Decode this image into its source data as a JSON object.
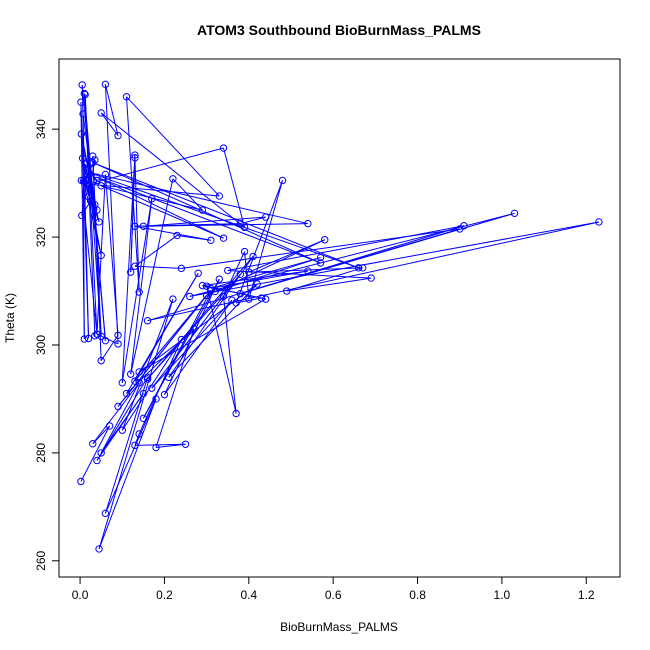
{
  "chart_data": {
    "type": "line",
    "title": "ATOM3 Southbound BioBurnMass_PALMS",
    "xlabel": "BioBurnMass_PALMS",
    "ylabel": "Theta (K)",
    "xlim": [
      -0.05,
      1.28
    ],
    "ylim": [
      257,
      353
    ],
    "xticks": [
      0.0,
      0.2,
      0.4,
      0.6,
      0.8,
      1.0,
      1.2
    ],
    "xtick_labels": [
      "0.0",
      "0.2",
      "0.4",
      "0.6",
      "0.8",
      "1.0",
      "1.2"
    ],
    "yticks": [
      260,
      280,
      300,
      320,
      340
    ],
    "ytick_labels": [
      "260",
      "280",
      "300",
      "320",
      "340"
    ],
    "grid": false,
    "marker": "open-circle",
    "series": [
      {
        "color": "#0000ff",
        "points": [
          [
            0.002,
            274.7
          ],
          [
            0.07,
            285.0
          ],
          [
            0.03,
            281.7
          ],
          [
            0.14,
            293.0
          ],
          [
            0.05,
            280.0
          ],
          [
            0.15,
            291.0
          ],
          [
            0.04,
            278.6
          ],
          [
            0.16,
            294.0
          ],
          [
            0.06,
            268.8
          ],
          [
            0.18,
            290.0
          ],
          [
            0.045,
            262.2
          ],
          [
            0.22,
            308.5
          ],
          [
            0.1,
            284.2
          ],
          [
            0.24,
            301.0
          ],
          [
            0.14,
            283.5
          ],
          [
            0.13,
            281.4
          ],
          [
            0.25,
            281.6
          ],
          [
            0.18,
            281.0
          ],
          [
            0.27,
            303.0
          ],
          [
            0.11,
            291.0
          ],
          [
            0.28,
            313.3
          ],
          [
            0.13,
            293.3
          ],
          [
            0.3,
            309.2
          ],
          [
            0.09,
            288.6
          ],
          [
            0.31,
            310.1
          ],
          [
            0.15,
            286.4
          ],
          [
            0.33,
            312.2
          ],
          [
            0.2,
            290.8
          ],
          [
            0.36,
            308.3
          ],
          [
            0.17,
            292.0
          ],
          [
            0.38,
            313.1
          ],
          [
            0.16,
            293.7
          ],
          [
            0.41,
            316.4
          ],
          [
            0.21,
            294.0
          ],
          [
            0.42,
            311.3
          ],
          [
            0.14,
            295.0
          ],
          [
            0.44,
            308.5
          ],
          [
            0.3,
            310.9
          ],
          [
            0.37,
            287.3
          ],
          [
            0.34,
            309.0
          ],
          [
            0.39,
            317.3
          ],
          [
            0.4,
            308.5
          ],
          [
            0.48,
            330.5
          ],
          [
            0.37,
            307.8
          ],
          [
            0.43,
            308.7
          ],
          [
            0.29,
            311.0
          ],
          [
            0.54,
            313.7
          ],
          [
            0.31,
            310.5
          ],
          [
            0.57,
            316.2
          ],
          [
            0.32,
            309.9
          ],
          [
            0.58,
            319.5
          ],
          [
            0.4,
            313.5
          ],
          [
            0.67,
            314.3
          ],
          [
            0.49,
            310.0
          ],
          [
            0.69,
            312.4
          ],
          [
            0.35,
            313.8
          ],
          [
            0.91,
            322.1
          ],
          [
            0.38,
            309.5
          ],
          [
            1.03,
            324.4
          ],
          [
            0.26,
            309.0
          ],
          [
            1.23,
            322.8
          ],
          [
            0.16,
            304.5
          ],
          [
            0.9,
            321.5
          ],
          [
            0.24,
            314.2
          ],
          [
            0.13,
            314.6
          ],
          [
            0.23,
            320.3
          ],
          [
            0.31,
            319.4
          ],
          [
            0.13,
            322.0
          ],
          [
            0.38,
            322.5
          ],
          [
            0.44,
            323.7
          ],
          [
            0.15,
            322.0
          ],
          [
            0.54,
            322.5
          ],
          [
            0.02,
            332.0
          ],
          [
            0.66,
            314.3
          ],
          [
            0.03,
            333.8
          ],
          [
            0.57,
            315.2
          ],
          [
            0.04,
            331.1
          ],
          [
            0.34,
            319.8
          ],
          [
            0.05,
            329.5
          ],
          [
            0.29,
            325.0
          ],
          [
            0.22,
            330.8
          ],
          [
            0.12,
            294.6
          ],
          [
            0.17,
            327.1
          ],
          [
            0.1,
            293.0
          ],
          [
            0.13,
            335.2
          ],
          [
            0.12,
            313.5
          ],
          [
            0.13,
            334.7
          ],
          [
            0.14,
            309.8
          ],
          [
            0.11,
            346.0
          ],
          [
            0.33,
            327.6
          ],
          [
            0.02,
            329.8
          ],
          [
            0.34,
            336.5
          ],
          [
            0.39,
            321.8
          ],
          [
            0.05,
            343.0
          ],
          [
            0.09,
            338.8
          ],
          [
            0.06,
            348.3
          ],
          [
            0.09,
            300.2
          ],
          [
            0.04,
            302.0
          ],
          [
            0.06,
            331.6
          ],
          [
            0.09,
            301.8
          ],
          [
            0.05,
            297.1
          ],
          [
            0.03,
            335.0
          ],
          [
            0.05,
            301.6
          ],
          [
            0.01,
            346.6
          ],
          [
            0.06,
            300.8
          ],
          [
            0.005,
            348.2
          ],
          [
            0.02,
            301.2
          ],
          [
            0.002,
            345.0
          ],
          [
            0.01,
            301.1
          ],
          [
            0.007,
            342.8
          ],
          [
            0.035,
            326.0
          ],
          [
            0.003,
            339.1
          ],
          [
            0.04,
            325.0
          ],
          [
            0.006,
            334.6
          ],
          [
            0.05,
            316.6
          ],
          [
            0.008,
            330.4
          ],
          [
            0.045,
            322.8
          ],
          [
            0.012,
            333.5
          ],
          [
            0.04,
            330.5
          ],
          [
            0.02,
            327.5
          ],
          [
            0.035,
            334.3
          ],
          [
            0.012,
            330.6
          ],
          [
            0.025,
            326.7
          ],
          [
            0.004,
            324.0
          ],
          [
            0.015,
            330.5
          ],
          [
            0.003,
            330.5
          ],
          [
            0.04,
            302.0
          ],
          [
            0.012,
            346.4
          ],
          [
            0.035,
            301.7
          ]
        ]
      }
    ]
  }
}
